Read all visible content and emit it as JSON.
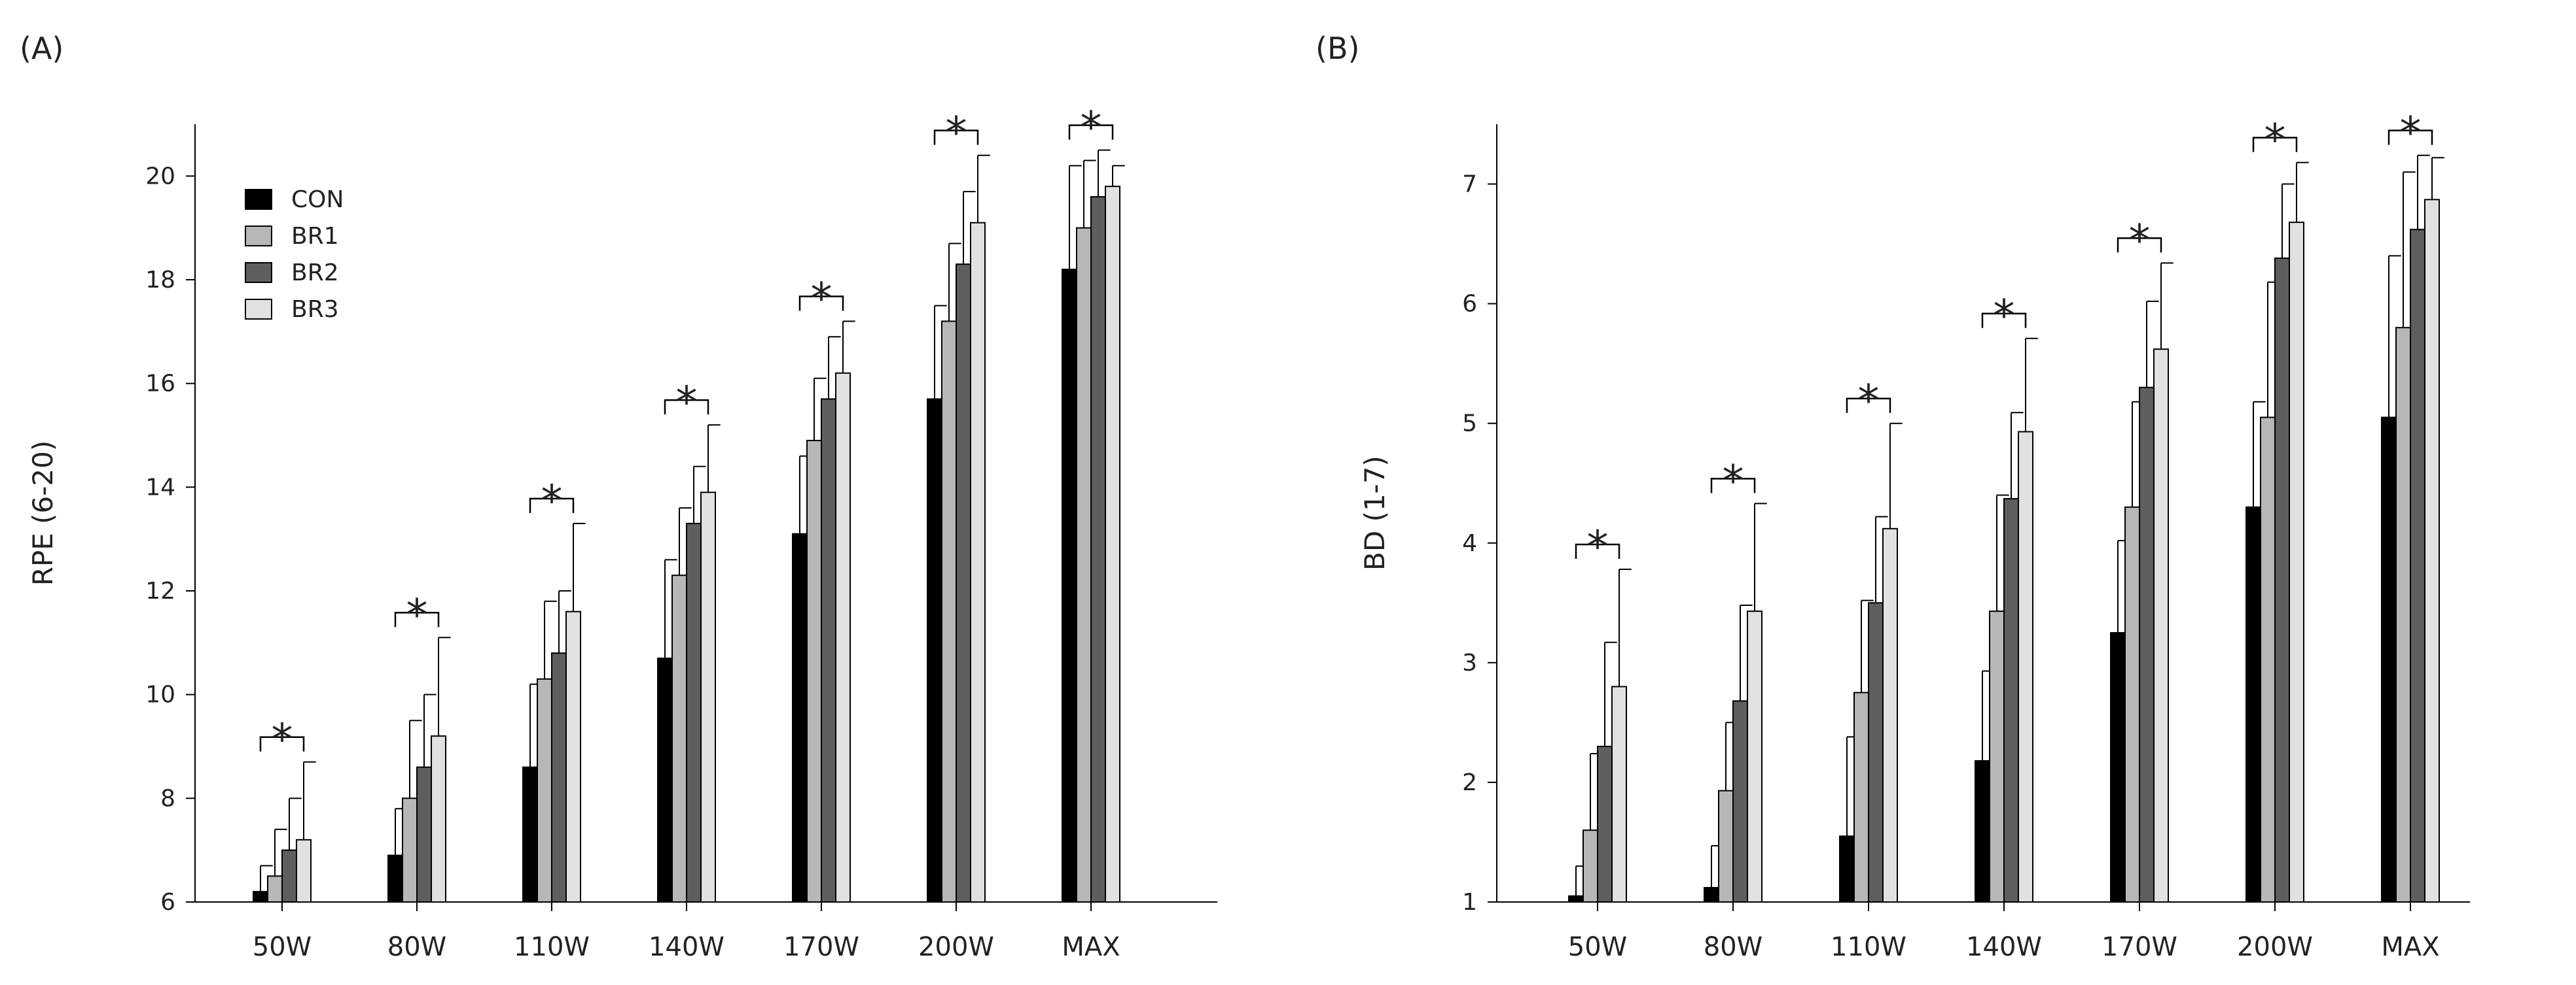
{
  "chart_data": [
    {
      "type": "bar",
      "panel_label": "(A)",
      "ylabel": "RPE (6-20)",
      "xlabel": "",
      "ylim": [
        6,
        21
      ],
      "yticks": [
        6,
        8,
        10,
        12,
        14,
        16,
        18,
        20
      ],
      "categories": [
        "50W",
        "80W",
        "110W",
        "140W",
        "170W",
        "200W",
        "MAX"
      ],
      "series": [
        {
          "name": "CON",
          "color": "#000000",
          "values": [
            6.2,
            6.9,
            8.6,
            10.7,
            13.1,
            15.7,
            18.2
          ],
          "errors": [
            0.5,
            0.9,
            1.6,
            1.9,
            1.5,
            1.8,
            2.0
          ]
        },
        {
          "name": "BR1",
          "color": "#b7b7b7",
          "values": [
            6.5,
            8.0,
            10.3,
            12.3,
            14.9,
            17.2,
            19.0
          ],
          "errors": [
            0.9,
            1.5,
            1.5,
            1.3,
            1.2,
            1.5,
            1.3
          ]
        },
        {
          "name": "BR2",
          "color": "#5e5e5e",
          "values": [
            7.0,
            8.6,
            10.8,
            13.3,
            15.7,
            18.3,
            19.6
          ],
          "errors": [
            1.0,
            1.4,
            1.2,
            1.1,
            1.2,
            1.4,
            0.9
          ]
        },
        {
          "name": "BR3",
          "color": "#e1e1e1",
          "values": [
            7.2,
            9.2,
            11.6,
            13.9,
            16.2,
            19.1,
            19.8
          ],
          "errors": [
            1.5,
            1.9,
            1.7,
            1.3,
            1.0,
            1.3,
            0.4
          ]
        }
      ],
      "significance_marker": "*",
      "significant_categories": [
        "50W",
        "80W",
        "110W",
        "140W",
        "170W",
        "200W",
        "MAX"
      ],
      "legend": {
        "position": "top-left",
        "entries": [
          "CON",
          "BR1",
          "BR2",
          "BR3"
        ]
      },
      "grid": false
    },
    {
      "type": "bar",
      "panel_label": "(B)",
      "ylabel": "BD (1-7)",
      "xlabel": "",
      "ylim": [
        1,
        7.5
      ],
      "yticks": [
        1,
        2,
        3,
        4,
        5,
        6,
        7
      ],
      "categories": [
        "50W",
        "80W",
        "110W",
        "140W",
        "170W",
        "200W",
        "MAX"
      ],
      "series": [
        {
          "name": "CON",
          "color": "#000000",
          "values": [
            1.05,
            1.12,
            1.55,
            2.18,
            3.25,
            4.3,
            5.05
          ],
          "errors": [
            0.25,
            0.35,
            0.83,
            0.75,
            0.77,
            0.88,
            1.35
          ]
        },
        {
          "name": "BR1",
          "color": "#b7b7b7",
          "values": [
            1.6,
            1.93,
            2.75,
            3.43,
            4.3,
            5.05,
            5.8
          ],
          "errors": [
            0.64,
            0.57,
            0.77,
            0.97,
            0.88,
            1.13,
            1.3
          ]
        },
        {
          "name": "BR2",
          "color": "#5e5e5e",
          "values": [
            2.3,
            2.68,
            3.5,
            4.37,
            5.3,
            6.38,
            6.62
          ],
          "errors": [
            0.87,
            0.8,
            0.72,
            0.72,
            0.72,
            0.62,
            0.62
          ]
        },
        {
          "name": "BR3",
          "color": "#e1e1e1",
          "values": [
            2.8,
            3.43,
            4.12,
            4.93,
            5.62,
            6.68,
            6.87
          ],
          "errors": [
            0.98,
            0.9,
            0.88,
            0.78,
            0.72,
            0.5,
            0.35
          ]
        }
      ],
      "significance_marker": "*",
      "significant_categories": [
        "50W",
        "80W",
        "110W",
        "140W",
        "170W",
        "200W",
        "MAX"
      ],
      "legend": null,
      "grid": false
    }
  ]
}
